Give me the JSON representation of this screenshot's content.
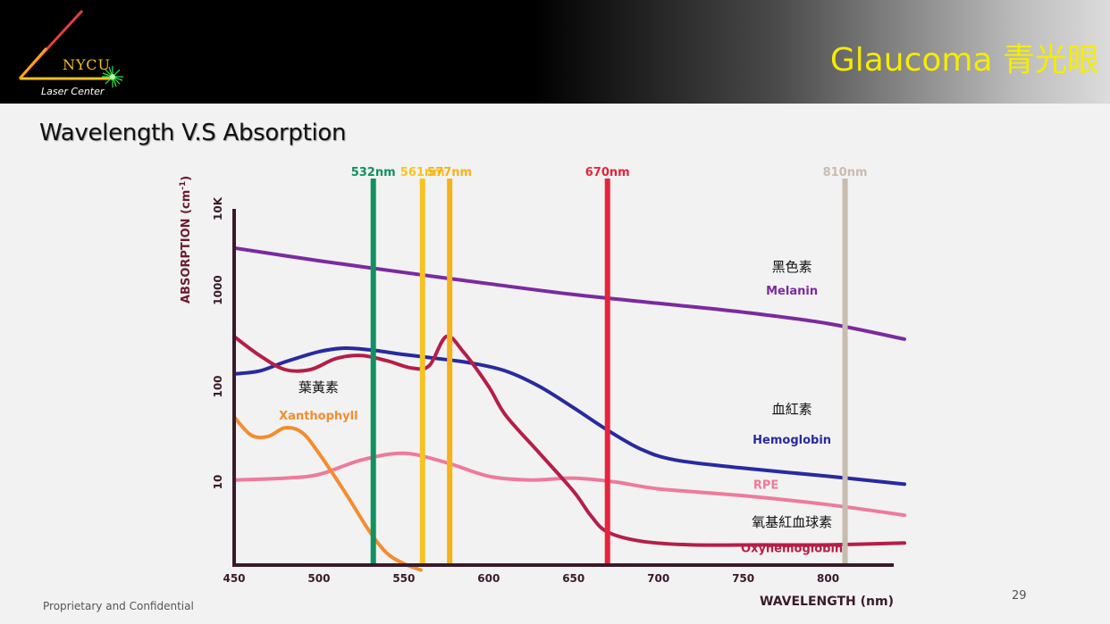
{
  "header": {
    "logo_text": "NYCU",
    "logo_subtext": "Laser Center",
    "title": "Glaucoma 青光眼"
  },
  "section_title": "Wavelength V.S Absorption",
  "footer": {
    "left": "Proprietary and Confidential",
    "page_number": "29"
  },
  "chart_data": {
    "type": "line",
    "title": "",
    "xlabel": "WAVELENGTH (nm)",
    "ylabel": "ABSORPTION (cm",
    "ylabel_superscript": "-1",
    "ylabel_suffix": ")",
    "y_scale": "log",
    "xlim": [
      450,
      845
    ],
    "ylim": [
      1.2,
      15000
    ],
    "x_ticks": [
      450,
      500,
      550,
      600,
      650,
      700,
      750,
      800
    ],
    "y_ticks": [
      {
        "value": 10,
        "label": "10"
      },
      {
        "value": 100,
        "label": "100"
      },
      {
        "value": 1000,
        "label": "1000"
      },
      {
        "value": 10000,
        "label": "10K"
      }
    ],
    "laser_lines": [
      {
        "label": "532nm",
        "wavelength": 532,
        "color": "#119060"
      },
      {
        "label": "561nm",
        "wavelength": 561,
        "color": "#f7c320"
      },
      {
        "label": "577nm",
        "wavelength": 577,
        "color": "#f7b21a"
      },
      {
        "label": "670nm",
        "wavelength": 670,
        "color": "#e8233a"
      },
      {
        "label": "810nm",
        "wavelength": 810,
        "color": "#c8bcb0"
      }
    ],
    "series": [
      {
        "name": "Melanin",
        "name_zh": "黑色素",
        "color": "#7b2aa0",
        "points": [
          [
            450,
            3300
          ],
          [
            500,
            2300
          ],
          [
            550,
            1650
          ],
          [
            600,
            1200
          ],
          [
            650,
            900
          ],
          [
            700,
            730
          ],
          [
            750,
            590
          ],
          [
            800,
            450
          ],
          [
            845,
            310
          ]
        ]
      },
      {
        "name": "Hemoglobin",
        "name_zh": "血紅素",
        "color": "#282aa0",
        "points": [
          [
            450,
            135
          ],
          [
            465,
            145
          ],
          [
            480,
            180
          ],
          [
            500,
            230
          ],
          [
            515,
            250
          ],
          [
            530,
            240
          ],
          [
            550,
            215
          ],
          [
            570,
            195
          ],
          [
            590,
            175
          ],
          [
            610,
            145
          ],
          [
            630,
            100
          ],
          [
            650,
            60
          ],
          [
            670,
            35
          ],
          [
            690,
            22
          ],
          [
            710,
            17
          ],
          [
            750,
            14
          ],
          [
            800,
            11.5
          ],
          [
            845,
            9.5
          ]
        ]
      },
      {
        "name": "RPE",
        "name_zh": "",
        "color": "#ee7a9c",
        "points": [
          [
            450,
            10.5
          ],
          [
            480,
            11
          ],
          [
            500,
            12
          ],
          [
            525,
            17
          ],
          [
            550,
            20
          ],
          [
            575,
            16
          ],
          [
            600,
            11.5
          ],
          [
            625,
            10.5
          ],
          [
            650,
            11
          ],
          [
            675,
            10
          ],
          [
            700,
            8.5
          ],
          [
            750,
            7.2
          ],
          [
            800,
            5.8
          ],
          [
            845,
            4.5
          ]
        ]
      },
      {
        "name": "Oxyhemoglobin",
        "name_zh": "氧基紅血球素",
        "color": "#b51e48",
        "points": [
          [
            450,
            330
          ],
          [
            465,
            210
          ],
          [
            480,
            150
          ],
          [
            495,
            150
          ],
          [
            510,
            195
          ],
          [
            525,
            210
          ],
          [
            540,
            185
          ],
          [
            555,
            155
          ],
          [
            565,
            165
          ],
          [
            575,
            330
          ],
          [
            585,
            230
          ],
          [
            600,
            100
          ],
          [
            610,
            50
          ],
          [
            630,
            20
          ],
          [
            650,
            8
          ],
          [
            660,
            4.5
          ],
          [
            670,
            3
          ],
          [
            690,
            2.4
          ],
          [
            720,
            2.2
          ],
          [
            760,
            2.2
          ],
          [
            800,
            2.2
          ],
          [
            845,
            2.3
          ]
        ]
      },
      {
        "name": "Xanthophyll",
        "name_zh": "葉黃素",
        "color": "#f38d2f",
        "points": [
          [
            450,
            48
          ],
          [
            460,
            31
          ],
          [
            470,
            30
          ],
          [
            480,
            37
          ],
          [
            490,
            33
          ],
          [
            500,
            20
          ],
          [
            515,
            8
          ],
          [
            530,
            3
          ],
          [
            540,
            1.8
          ],
          [
            550,
            1.4
          ],
          [
            560,
            1.2
          ]
        ]
      }
    ],
    "annotations": [
      {
        "zh": "黑色素",
        "en": "Melanin",
        "x": 755,
        "y": 1700,
        "en_y": 1000,
        "color": "#7b2aa0"
      },
      {
        "zh": "血紅素",
        "en": "Hemoglobin",
        "x": 755,
        "y": 52,
        "en_y": 28,
        "color": "#282aa0"
      },
      {
        "zh": "",
        "en": "RPE",
        "x": 755,
        "y": 0,
        "en_y": 9.5,
        "color": "#ee7a9c"
      },
      {
        "zh": "氧基紅血球素",
        "en": "Oxyhemoglobin",
        "x": 755,
        "y": 3.4,
        "en_y": 2.05,
        "color": "#b51e48"
      },
      {
        "zh": "葉黃素",
        "en": "Xanthophyll",
        "x": 476,
        "y": 88,
        "en_y": 50,
        "color": "#f38d2f"
      }
    ]
  }
}
